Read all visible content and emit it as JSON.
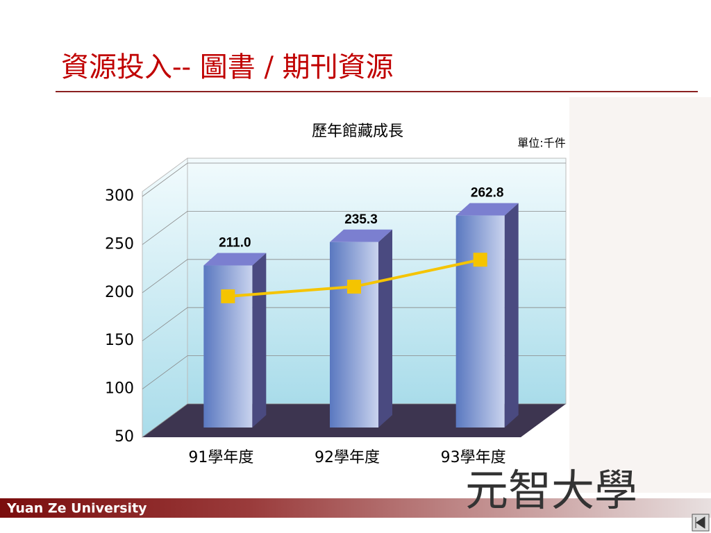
{
  "slide": {
    "title": "資源投入-- 圖書 / 期刊資源",
    "footer": "Yuan Ze University",
    "logo": "元智大學"
  },
  "chart_data": {
    "type": "bar",
    "title": "歷年館藏成長",
    "unit_note": "單位:千件",
    "categories": [
      "91學年度",
      "92學年度",
      "93學年度"
    ],
    "series": [
      {
        "type": "bar",
        "color": "#6f86c8",
        "values": [
          211.0,
          235.3,
          262.8
        ],
        "value_labels": [
          "211.0",
          "235.3",
          "262.8"
        ]
      },
      {
        "type": "line",
        "color": "#f5c400",
        "values": [
          179,
          189,
          217
        ]
      }
    ],
    "ylim": [
      50,
      300
    ],
    "yticks": [
      50,
      100,
      150,
      200,
      250,
      300
    ],
    "grid": true
  }
}
